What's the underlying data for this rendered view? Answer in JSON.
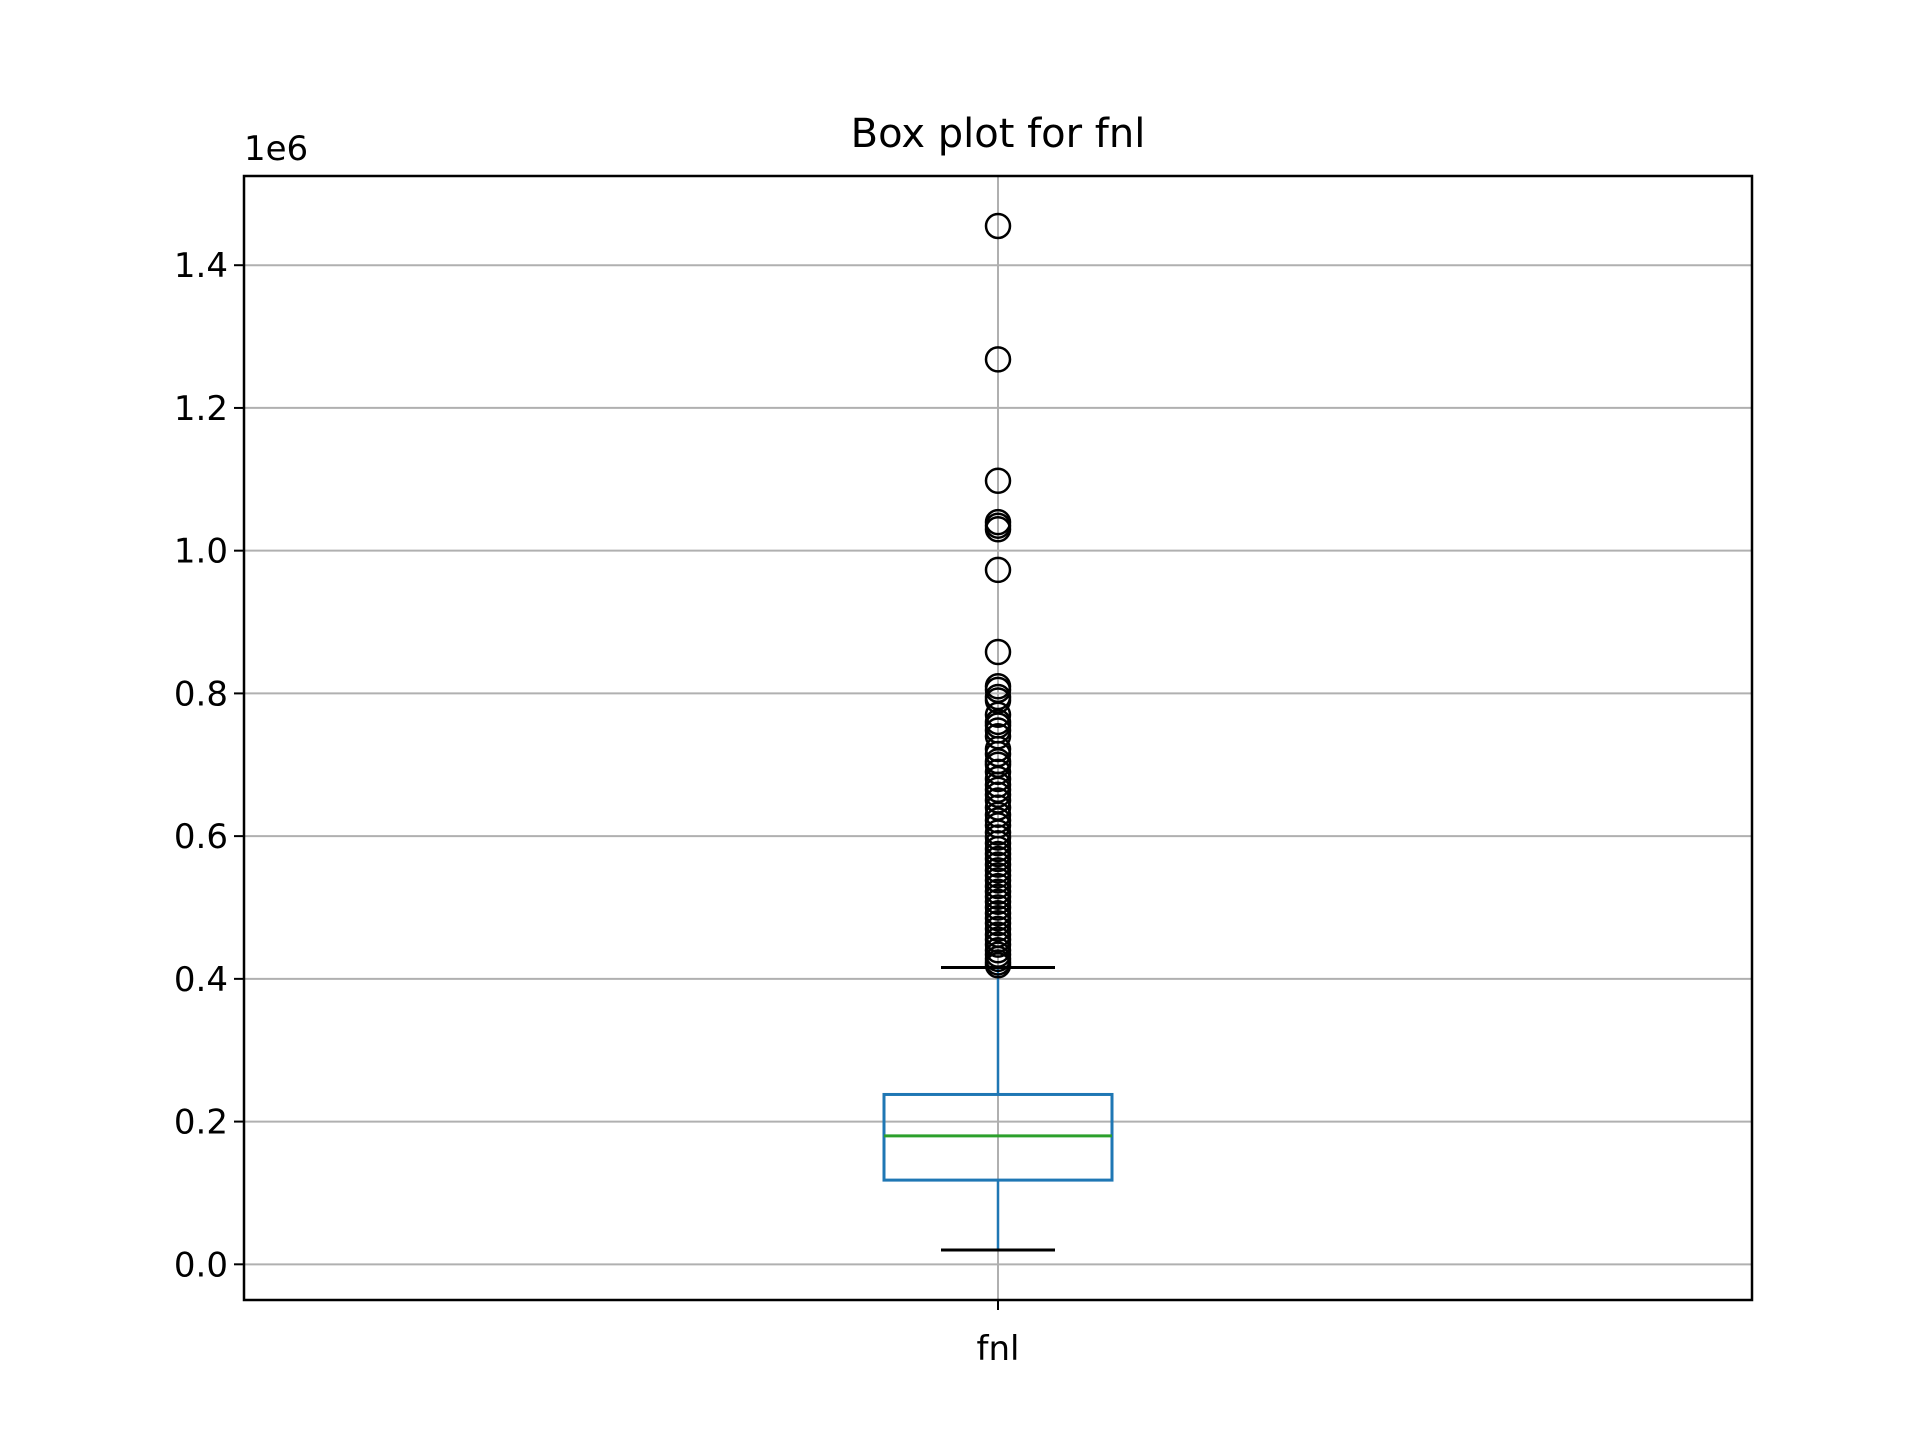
{
  "chart_data": {
    "type": "box",
    "title": "Box plot for fnl",
    "xlabel": "",
    "ylabel": "",
    "categories": [
      "fnl"
    ],
    "y_offset_label": "1e6",
    "y_scale_factor": 1000000,
    "ylim": [
      -50000,
      1525000
    ],
    "yticks": [
      0,
      200000,
      400000,
      600000,
      800000,
      1000000,
      1200000,
      1400000
    ],
    "ytick_labels": [
      "0.0",
      "0.2",
      "0.4",
      "0.6",
      "0.8",
      "1.0",
      "1.2",
      "1.4"
    ],
    "grid": true,
    "box": {
      "whisker_low": 20000,
      "q1": 118000,
      "median": 180000,
      "q3": 238000,
      "whisker_high": 416000
    },
    "fliers": [
      1455000,
      1268000,
      1098000,
      1040000,
      1035000,
      1030000,
      973000,
      858000,
      810000,
      805000,
      795000,
      790000,
      770000,
      760000,
      755000,
      748000,
      740000,
      722000,
      715000,
      705000,
      700000,
      690000,
      680000,
      672000,
      665000,
      658000,
      650000,
      640000,
      630000,
      622000,
      615000,
      605000,
      598000,
      590000,
      582000,
      575000,
      568000,
      560000,
      552000,
      545000,
      538000,
      530000,
      522000,
      515000,
      508000,
      500000,
      492000,
      485000,
      478000,
      470000,
      462000,
      455000,
      448000,
      440000,
      434000,
      428000,
      423000,
      419000
    ],
    "colors": {
      "box": "#1f77b4",
      "median": "#2ca02c",
      "caps": "#000000",
      "fliers": "#000000",
      "grid": "#b0b0b0"
    }
  }
}
